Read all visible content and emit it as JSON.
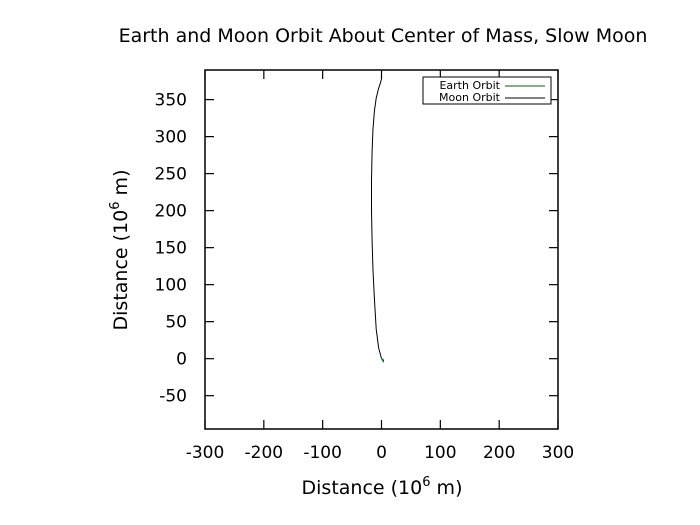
{
  "chart_data": {
    "type": "line",
    "title": "Earth and Moon Orbit About Center of Mass, Slow Moon",
    "xlabel": {
      "prefix": "Distance (10",
      "sup": "6",
      "suffix": " m)"
    },
    "ylabel": {
      "prefix": "Distance (10",
      "sup": "6",
      "suffix": " m)"
    },
    "xlim": [
      -300,
      300
    ],
    "ylim": [
      -95,
      390
    ],
    "xticks": [
      -300,
      -200,
      -100,
      0,
      100,
      200,
      300
    ],
    "yticks": [
      -50,
      0,
      50,
      100,
      150,
      200,
      250,
      300,
      350
    ],
    "grid": false,
    "legend_position": "top-right",
    "series": [
      {
        "name": "Earth Orbit",
        "color": "#006400",
        "x": [
          0.0,
          1.0,
          2.0,
          3.0,
          3.5,
          3.0,
          2.0
        ],
        "y": [
          0.0,
          -1.0,
          -2.5,
          -4.0,
          -3.0,
          -1.5,
          0.0
        ]
      },
      {
        "name": "Moon Orbit",
        "color": "#000000",
        "x": [
          0,
          -5,
          -9,
          -12,
          -14.5,
          -16,
          -17,
          -17,
          -16,
          -14.5,
          -12,
          -9,
          -5,
          -2,
          0
        ],
        "y": [
          0,
          15,
          40,
          80,
          120,
          160,
          200,
          240,
          280,
          310,
          335,
          352,
          365,
          372,
          378
        ]
      }
    ]
  }
}
